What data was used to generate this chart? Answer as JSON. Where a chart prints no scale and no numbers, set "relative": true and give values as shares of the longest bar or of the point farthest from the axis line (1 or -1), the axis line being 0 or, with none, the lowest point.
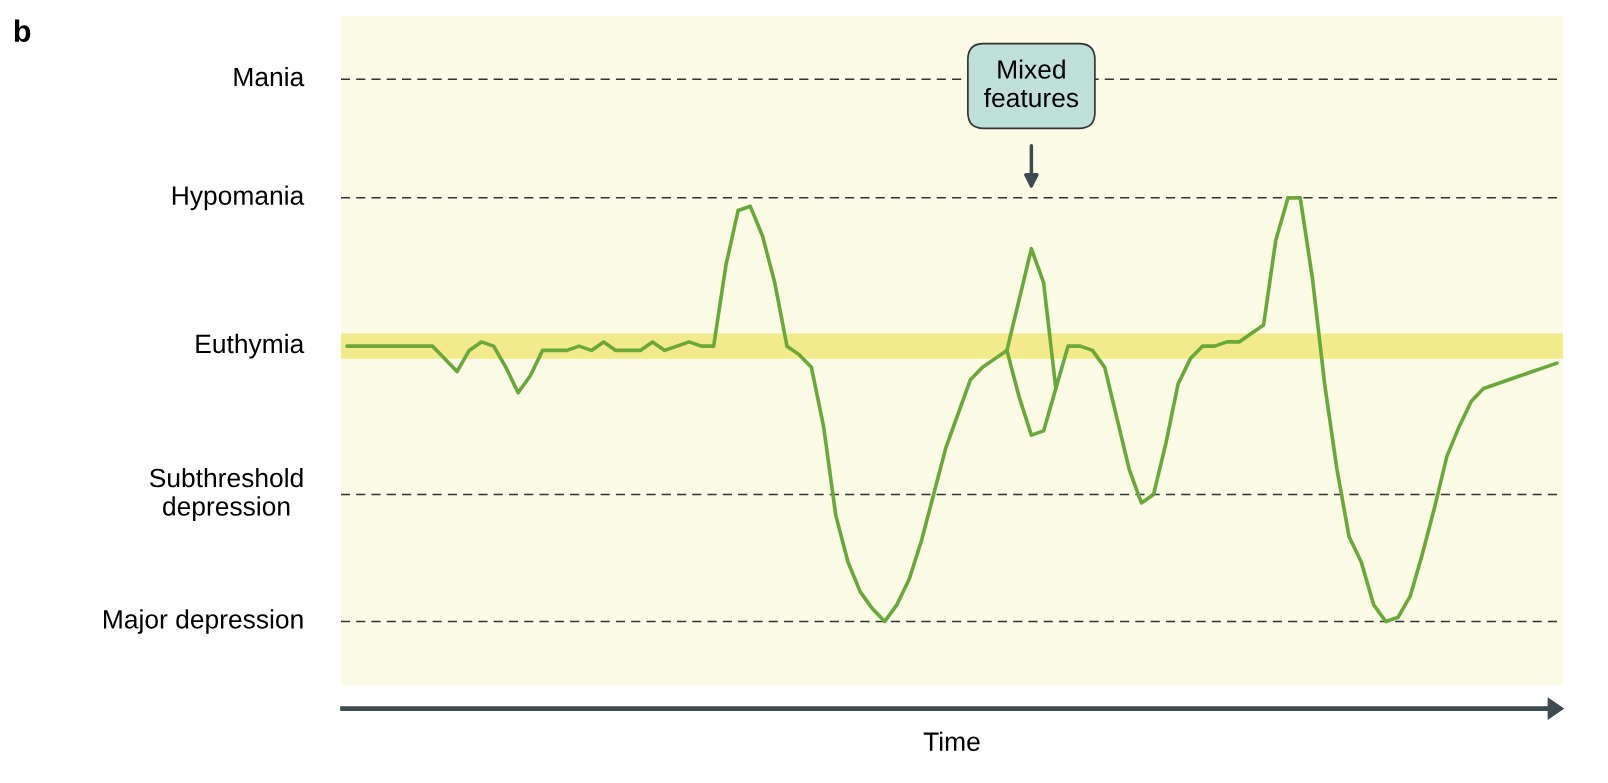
{
  "chart_data": {
    "type": "line",
    "title": "b",
    "xlabel": "Time",
    "relative": true,
    "categories": [
      null,
      null,
      null,
      null,
      null,
      null,
      null,
      null,
      null,
      null,
      null,
      null,
      null,
      null,
      null,
      null,
      null,
      null,
      null,
      null,
      null,
      null,
      null,
      null,
      null,
      null,
      null,
      null,
      null,
      null,
      null,
      null,
      null,
      null,
      null,
      null,
      null,
      null,
      null,
      null,
      null,
      null,
      null,
      null,
      null,
      null,
      null,
      null,
      null,
      null,
      null,
      null,
      null,
      null,
      null,
      null,
      null,
      null,
      null,
      null,
      null,
      null,
      null,
      null,
      null,
      null,
      null,
      null,
      null,
      null,
      null,
      null,
      null,
      null,
      null,
      null,
      null,
      null,
      null,
      null,
      null,
      null,
      null,
      null,
      null,
      null,
      null,
      null,
      null,
      null,
      null,
      null,
      null,
      null,
      null,
      null,
      null,
      null,
      null,
      null
    ],
    "grid": false,
    "marker": "none",
    "line_style": "solid",
    "series": [
      {
        "color": "#6aa83c",
        "values": [
          0.65,
          0.65,
          0.65,
          0.65,
          0.65,
          0.65,
          0.65,
          0.65,
          0.62,
          0.59,
          0.64,
          0.66,
          0.65,
          0.6,
          0.54,
          0.58,
          0.64,
          0.64,
          0.64,
          0.65,
          0.64,
          0.66,
          0.64,
          0.64,
          0.64,
          0.66,
          0.64,
          0.65,
          0.66,
          0.65,
          0.65,
          0.84,
          0.97,
          0.98,
          0.91,
          0.8,
          0.65,
          0.63,
          0.6,
          0.46,
          0.25,
          0.14,
          0.07,
          0.03,
          0,
          0.04,
          0.1,
          0.19,
          0.3,
          0.41,
          0.49,
          0.57,
          0.6,
          0.62,
          0.64,
          0.76,
          0.88,
          0.8,
          0.55,
          0.65,
          0.65,
          0.64,
          0.6,
          0.48,
          0.36,
          0.28,
          0.3,
          0.42,
          0.56,
          0.62,
          0.65,
          0.65,
          0.66,
          0.66,
          0.68,
          0.7,
          0.9,
          1.0,
          1.0,
          0.81,
          0.56,
          0.36,
          0.2,
          0.14,
          0.04,
          0,
          0.01,
          0.06,
          0.16,
          0.27,
          0.39,
          0.46,
          0.52,
          0.55,
          0.56,
          0.57,
          0.58,
          0.59,
          0.6,
          0.61
        ]
      },
      {
        "color": "#6aa83c",
        "values": [
          null,
          null,
          null,
          null,
          null,
          null,
          null,
          null,
          null,
          null,
          null,
          null,
          null,
          null,
          null,
          null,
          null,
          null,
          null,
          null,
          null,
          null,
          null,
          null,
          null,
          null,
          null,
          null,
          null,
          null,
          null,
          null,
          null,
          null,
          null,
          null,
          null,
          null,
          null,
          null,
          null,
          null,
          null,
          null,
          null,
          null,
          null,
          null,
          null,
          null,
          null,
          null,
          null,
          null,
          0.64,
          0.53,
          0.44,
          0.45,
          0.55,
          null,
          null,
          null,
          null,
          null,
          null,
          null,
          null,
          null,
          null,
          null,
          null,
          null,
          null,
          null,
          null,
          null,
          null,
          null,
          null,
          null,
          null,
          null,
          null,
          null,
          null,
          null,
          null,
          null,
          null,
          null,
          null,
          null,
          null,
          null,
          null,
          null,
          null,
          null,
          null,
          null
        ]
      }
    ],
    "ref_lines": [
      {
        "axis": "y",
        "value": 1.28,
        "label": "Mania",
        "color": "#333333",
        "line_style": "dashed"
      },
      {
        "axis": "y",
        "value": 1.0,
        "label": "Hypomania",
        "color": "#333333",
        "line_style": "dashed"
      },
      {
        "axis": "y",
        "value": 0.3,
        "label": "Subthreshold\ndepression",
        "color": "#333333",
        "line_style": "dashed"
      },
      {
        "axis": "y",
        "value": 0,
        "label": "Major depression",
        "color": "#333333",
        "line_style": "dashed"
      }
    ],
    "bands": [
      {
        "axis": "y",
        "from": 0.62,
        "to": 0.68,
        "label": "Euthymia",
        "color": "#f2ea8c"
      }
    ],
    "annotations": [
      "Mixed features"
    ]
  }
}
